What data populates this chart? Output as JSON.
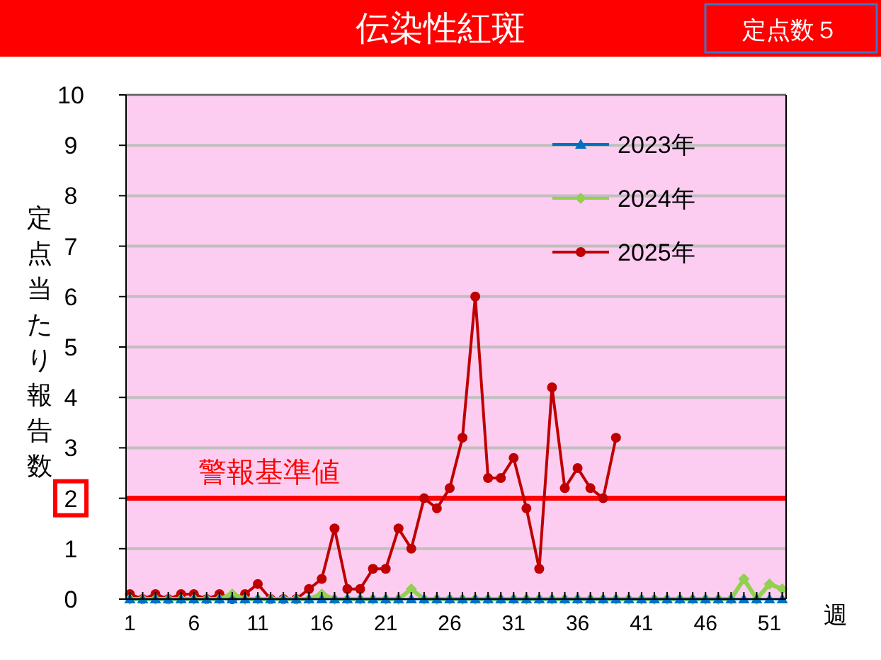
{
  "chart_data": {
    "type": "line",
    "title": "伝染性紅斑",
    "subtitle": "定点数５",
    "xlabel": "週",
    "ylabel": "定点当たり報告数",
    "x": [
      1,
      2,
      3,
      4,
      5,
      6,
      7,
      8,
      9,
      10,
      11,
      12,
      13,
      14,
      15,
      16,
      17,
      18,
      19,
      20,
      21,
      22,
      23,
      24,
      25,
      26,
      27,
      28,
      29,
      30,
      31,
      32,
      33,
      34,
      35,
      36,
      37,
      38,
      39,
      40,
      41,
      42,
      43,
      44,
      45,
      46,
      47,
      48,
      49,
      50,
      51,
      52
    ],
    "series": [
      {
        "name": "2023年",
        "color": "#0070c0",
        "marker": "triangle",
        "values": [
          0,
          0,
          0,
          0,
          0,
          0,
          0,
          0,
          0,
          0,
          0,
          0,
          0,
          0,
          0,
          0,
          0,
          0,
          0,
          0,
          0,
          0,
          0,
          0,
          0,
          0,
          0,
          0,
          0,
          0,
          0,
          0,
          0,
          0,
          0,
          0,
          0,
          0,
          0,
          0,
          0,
          0,
          0,
          0,
          0,
          0,
          0,
          0,
          0,
          0,
          0,
          0
        ]
      },
      {
        "name": "2024年",
        "color": "#92d050",
        "marker": "diamond",
        "values": [
          0,
          0,
          0,
          0,
          0,
          0,
          0,
          0,
          0.1,
          0,
          0,
          0,
          0,
          0,
          0,
          0.1,
          0,
          0,
          0,
          0,
          0,
          0,
          0.2,
          0,
          0,
          0,
          0,
          0,
          0,
          0,
          0,
          0,
          0,
          0,
          0,
          0,
          0,
          0,
          0,
          0,
          0,
          0,
          0,
          0,
          0,
          0,
          0,
          0,
          0.4,
          0,
          0.3,
          0.2
        ]
      },
      {
        "name": "2025年",
        "color": "#c00000",
        "marker": "circle",
        "values": [
          0.1,
          0,
          0.1,
          0,
          0.1,
          0.1,
          0,
          0.1,
          0,
          0.1,
          0.3,
          0,
          0,
          0,
          0.2,
          0.4,
          1.4,
          0.2,
          0.2,
          0.6,
          0.6,
          1.4,
          1,
          2,
          1.8,
          2.2,
          3.2,
          6,
          2.4,
          2.4,
          2.8,
          1.8,
          0.6,
          4.2,
          2.2,
          2.6,
          2.2,
          2,
          3.2,
          null,
          null,
          null,
          null,
          null,
          null,
          null,
          null,
          null,
          null,
          null,
          null,
          null
        ]
      }
    ],
    "xlim": [
      0.7,
      52.3
    ],
    "xticks": [
      1,
      {
        "value": 2,
        "label": null
      },
      {
        "value": 3,
        "label": null
      },
      {
        "value": 4,
        "label": null
      },
      {
        "value": 5,
        "label": null
      },
      6,
      {
        "value": 7,
        "label": null
      },
      {
        "value": 8,
        "label": null
      },
      {
        "value": 9,
        "label": null
      },
      {
        "value": 10,
        "label": null
      },
      11,
      {
        "value": 12,
        "label": null
      },
      {
        "value": 13,
        "label": null
      },
      {
        "value": 14,
        "label": null
      },
      {
        "value": 15,
        "label": null
      },
      16,
      {
        "value": 17,
        "label": null
      },
      {
        "value": 18,
        "label": null
      },
      {
        "value": 19,
        "label": null
      },
      {
        "value": 20,
        "label": null
      },
      21,
      {
        "value": 22,
        "label": null
      },
      {
        "value": 23,
        "label": null
      },
      {
        "value": 24,
        "label": null
      },
      {
        "value": 25,
        "label": null
      },
      26,
      {
        "value": 27,
        "label": null
      },
      {
        "value": 28,
        "label": null
      },
      {
        "value": 29,
        "label": null
      },
      {
        "value": 30,
        "label": null
      },
      31,
      {
        "value": 32,
        "label": null
      },
      {
        "value": 33,
        "label": null
      },
      {
        "value": 34,
        "label": null
      },
      {
        "value": 35,
        "label": null
      },
      36,
      {
        "value": 37,
        "label": null
      },
      {
        "value": 38,
        "label": null
      },
      {
        "value": 39,
        "label": null
      },
      {
        "value": 40,
        "label": null
      },
      41,
      {
        "value": 42,
        "label": null
      },
      {
        "value": 43,
        "label": null
      },
      {
        "value": 44,
        "label": null
      },
      {
        "value": 45,
        "label": null
      },
      46,
      {
        "value": 47,
        "label": null
      },
      {
        "value": 48,
        "label": null
      },
      {
        "value": 49,
        "label": null
      },
      {
        "value": 50,
        "label": null
      },
      51,
      {
        "value": 52,
        "label": null
      }
    ],
    "ylim": [
      0,
      10
    ],
    "yticks": [
      0,
      1,
      2,
      3,
      4,
      5,
      6,
      7,
      8,
      9,
      10
    ],
    "ref_lines": [
      {
        "axis": "y",
        "value": 2,
        "label": "警報基準値",
        "color": "#ff0000"
      }
    ],
    "grid": "y",
    "legend": "top right",
    "line_style": "solid"
  }
}
